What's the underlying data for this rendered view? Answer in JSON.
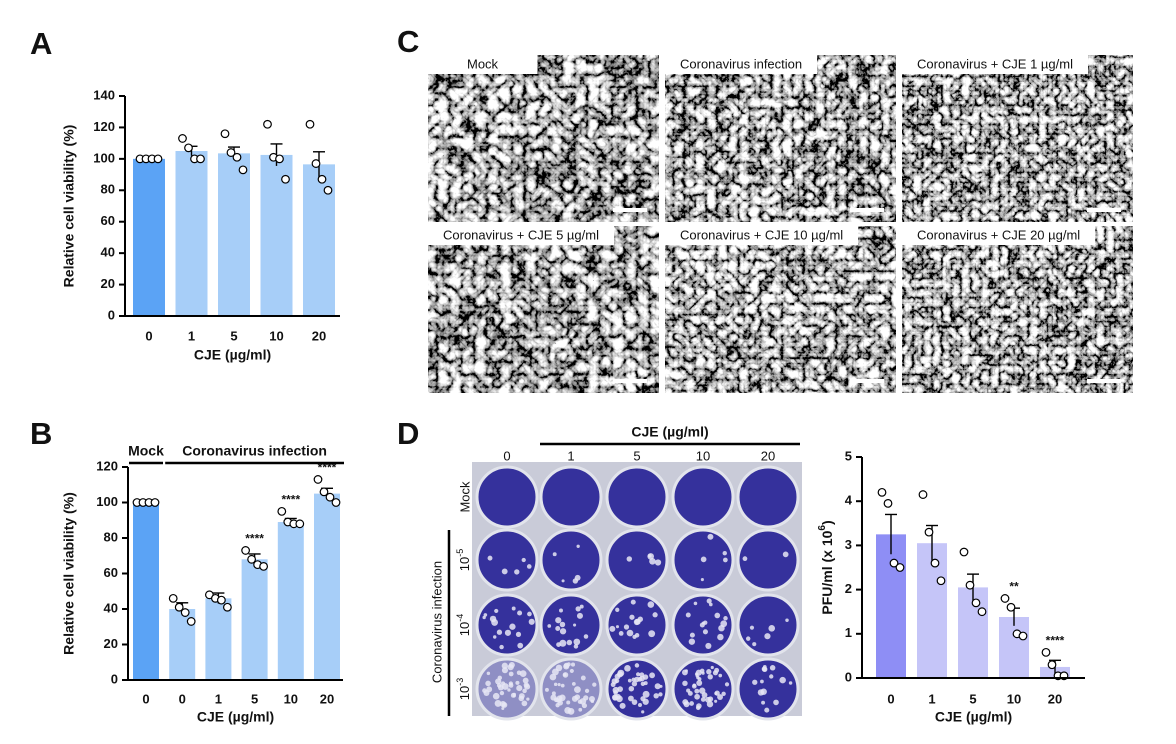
{
  "panel_labels": [
    "A",
    "B",
    "C",
    "D"
  ],
  "chart_data": [
    {
      "type": "bar",
      "categories": [
        "0",
        "1",
        "5",
        "10",
        "20"
      ],
      "values": [
        100,
        105,
        103.5,
        102.5,
        96.5
      ],
      "errors": [
        0,
        3,
        4,
        7,
        8
      ],
      "points": [
        [
          100,
          100,
          100,
          100
        ],
        [
          113,
          107,
          100,
          100
        ],
        [
          116,
          104,
          101,
          93
        ],
        [
          122,
          101,
          100,
          87
        ],
        [
          122,
          97,
          87,
          80
        ]
      ],
      "colors": [
        "#5ba3f5",
        "#a7cef8",
        "#a7cef8",
        "#a7cef8",
        "#a7cef8"
      ],
      "ylim": [
        0,
        140
      ],
      "yticks": [
        0,
        20,
        40,
        60,
        80,
        100,
        120,
        140
      ],
      "y_label": "Relative cell viability (%)",
      "x_label": "CJE (µg/ml)"
    },
    {
      "type": "bar",
      "categories": [
        "0",
        "0",
        "1",
        "5",
        "10",
        "20"
      ],
      "values": [
        100,
        40,
        46,
        68,
        89,
        105
      ],
      "errors": [
        0,
        3.5,
        3,
        3,
        2,
        3
      ],
      "points": [
        [
          100,
          100,
          100,
          100
        ],
        [
          46,
          41,
          38,
          33
        ],
        [
          48,
          46,
          45,
          41
        ],
        [
          73,
          68,
          65,
          64
        ],
        [
          95,
          89,
          88,
          88
        ],
        [
          113,
          106,
          103,
          100
        ]
      ],
      "colors": [
        "#5ba3f5",
        "#a7cef8",
        "#a7cef8",
        "#a7cef8",
        "#a7cef8",
        "#a7cef8"
      ],
      "annotations": [
        null,
        null,
        null,
        "****",
        "****",
        "****"
      ],
      "groups": [
        "Mock",
        "Coronavirus infection"
      ],
      "ylim": [
        0,
        120
      ],
      "yticks": [
        0,
        20,
        40,
        60,
        80,
        100,
        120
      ],
      "y_label": "Relative cell viability (%)",
      "x_label": "CJE (µg/ml)"
    },
    {
      "type": "bar",
      "categories": [
        "0",
        "1",
        "5",
        "10",
        "20"
      ],
      "values": [
        3.25,
        3.05,
        2.05,
        1.38,
        0.25
      ],
      "errors": [
        0.45,
        0.4,
        0.3,
        0.2,
        0.15
      ],
      "points": [
        [
          4.2,
          3.95,
          2.6,
          2.5
        ],
        [
          4.15,
          3.3,
          2.6,
          2.2
        ],
        [
          2.85,
          2.1,
          1.7,
          1.5
        ],
        [
          1.8,
          1.6,
          1.0,
          0.95
        ],
        [
          0.58,
          0.3,
          0.05,
          0.05
        ]
      ],
      "colors": [
        "#8e8ef5",
        "#c5c5f8",
        "#c5c5f8",
        "#c5c5f8",
        "#c5c5f8"
      ],
      "annotations": [
        null,
        null,
        null,
        "**",
        "****"
      ],
      "ylim": [
        0,
        5
      ],
      "yticks": [
        0,
        1,
        2,
        3,
        4,
        5
      ],
      "y_label": "PFU/ml (x 10",
      "y_label_sup": "6",
      "y_label_end": ")",
      "x_label": "CJE (µg/ml)"
    }
  ],
  "micrographs": {
    "labels": [
      "Mock",
      "Coronavirus infection",
      "Coronavirus + CJE 1 µg/ml",
      "Coronavirus + CJE 5 µg/ml",
      "Coronavirus + CJE 10 µg/ml",
      "Coronavirus + CJE 20 µg/ml"
    ]
  },
  "plaque_assay": {
    "column_title": "CJE (µg/ml)",
    "columns": [
      "0",
      "1",
      "5",
      "10",
      "20"
    ],
    "rows": [
      {
        "label": "Mock"
      },
      {
        "base": "10",
        "exponent": "-5"
      },
      {
        "base": "10",
        "exponent": "-4"
      },
      {
        "base": "10",
        "exponent": "-3"
      }
    ],
    "row_group": "Coronavirus infection"
  }
}
